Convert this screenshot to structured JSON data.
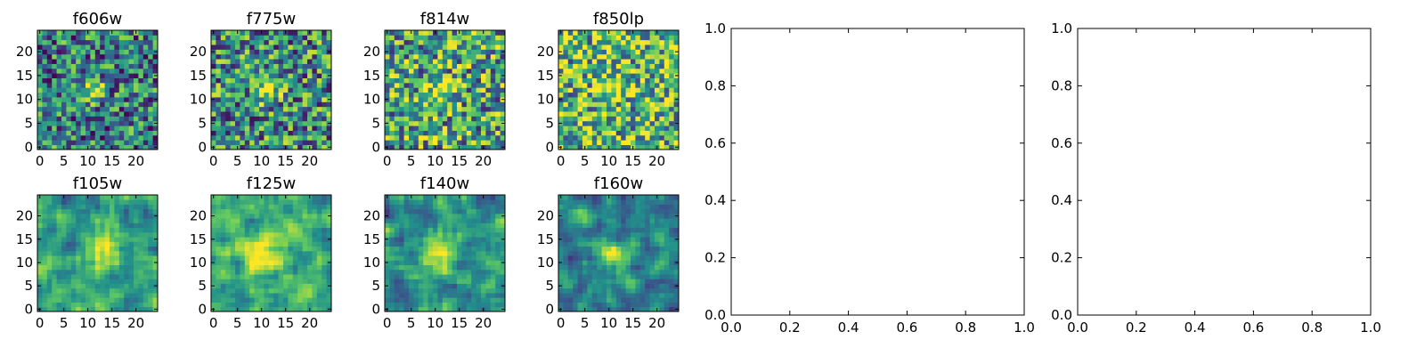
{
  "colormap": {
    "name": "viridis",
    "stops": [
      "#440154",
      "#3b528b",
      "#21918c",
      "#5ec962",
      "#fde725"
    ]
  },
  "chart_data": [
    {
      "type": "heatmap",
      "title": "f606w",
      "grid_shape": [
        25,
        25
      ],
      "xlim": [
        -0.5,
        24.5
      ],
      "ylim": [
        -0.5,
        24.5
      ],
      "xticks": [
        0,
        5,
        10,
        15,
        20
      ],
      "yticks": [
        0,
        5,
        10,
        15,
        20
      ],
      "background_level": 0.42,
      "noise": 0.42,
      "peak_center": [
        11,
        12
      ],
      "peak_level": 0.58,
      "peak_sigma": 1.8,
      "grid": false,
      "legend": "none"
    },
    {
      "type": "heatmap",
      "title": "f775w",
      "grid_shape": [
        25,
        25
      ],
      "xlim": [
        -0.5,
        24.5
      ],
      "ylim": [
        -0.5,
        24.5
      ],
      "xticks": [
        0,
        5,
        10,
        15,
        20
      ],
      "yticks": [
        0,
        5,
        10,
        15,
        20
      ],
      "background_level": 0.5,
      "noise": 0.45,
      "peak_center": [
        11,
        12
      ],
      "peak_level": 0.5,
      "peak_sigma": 1.8,
      "grid": false,
      "legend": "none"
    },
    {
      "type": "heatmap",
      "title": "f814w",
      "grid_shape": [
        25,
        25
      ],
      "xlim": [
        -0.5,
        24.5
      ],
      "ylim": [
        -0.5,
        24.5
      ],
      "xticks": [
        0,
        5,
        10,
        15,
        20
      ],
      "yticks": [
        0,
        5,
        10,
        15,
        20
      ],
      "background_level": 0.58,
      "noise": 0.45,
      "peak_center": [
        11,
        12
      ],
      "peak_level": 0.45,
      "peak_sigma": 1.8,
      "grid": false,
      "legend": "none"
    },
    {
      "type": "heatmap",
      "title": "f850lp",
      "grid_shape": [
        25,
        25
      ],
      "xlim": [
        -0.5,
        24.5
      ],
      "ylim": [
        -0.5,
        24.5
      ],
      "xticks": [
        0,
        5,
        10,
        15,
        20
      ],
      "yticks": [
        0,
        5,
        10,
        15,
        20
      ],
      "background_level": 0.65,
      "noise": 0.45,
      "peak_center": [
        11,
        13
      ],
      "peak_level": 0.3,
      "peak_sigma": 2.0,
      "grid": false,
      "legend": "none"
    },
    {
      "type": "heatmap",
      "title": "f105w",
      "grid_shape": [
        25,
        25
      ],
      "xlim": [
        -0.5,
        24.5
      ],
      "ylim": [
        -0.5,
        24.5
      ],
      "xticks": [
        0,
        5,
        10,
        15,
        20
      ],
      "yticks": [
        0,
        5,
        10,
        15,
        20
      ],
      "background_level": 0.55,
      "noise": 0.25,
      "smooth": true,
      "peak_center": [
        13,
        13
      ],
      "peak_level": 0.45,
      "peak_sigma": 2.4,
      "grid": false,
      "legend": "none"
    },
    {
      "type": "heatmap",
      "title": "f125w",
      "grid_shape": [
        25,
        25
      ],
      "xlim": [
        -0.5,
        24.5
      ],
      "ylim": [
        -0.5,
        24.5
      ],
      "xticks": [
        0,
        5,
        10,
        15,
        20
      ],
      "yticks": [
        0,
        5,
        10,
        15,
        20
      ],
      "background_level": 0.62,
      "noise": 0.25,
      "smooth": true,
      "peak_center": [
        11,
        12
      ],
      "peak_level": 0.4,
      "peak_sigma": 2.6,
      "grid": false,
      "legend": "none"
    },
    {
      "type": "heatmap",
      "title": "f140w",
      "grid_shape": [
        25,
        25
      ],
      "xlim": [
        -0.5,
        24.5
      ],
      "ylim": [
        -0.5,
        24.5
      ],
      "xticks": [
        0,
        5,
        10,
        15,
        20
      ],
      "yticks": [
        0,
        5,
        10,
        15,
        20
      ],
      "background_level": 0.52,
      "noise": 0.25,
      "smooth": true,
      "peak_center": [
        11,
        12
      ],
      "peak_level": 0.5,
      "peak_sigma": 2.4,
      "grid": false,
      "legend": "none"
    },
    {
      "type": "heatmap",
      "title": "f160w",
      "grid_shape": [
        25,
        25
      ],
      "xlim": [
        -0.5,
        24.5
      ],
      "ylim": [
        -0.5,
        24.5
      ],
      "xticks": [
        0,
        5,
        10,
        15,
        20
      ],
      "yticks": [
        0,
        5,
        10,
        15,
        20
      ],
      "background_level": 0.42,
      "noise": 0.25,
      "smooth": true,
      "peak_center": [
        11,
        12
      ],
      "peak_level": 0.6,
      "peak_sigma": 2.2,
      "grid": false,
      "legend": "none"
    },
    {
      "type": "line",
      "title": "",
      "series": [],
      "xlim": [
        0.0,
        1.0
      ],
      "ylim": [
        0.0,
        1.0
      ],
      "xticks": [
        "0.0",
        "0.2",
        "0.4",
        "0.6",
        "0.8",
        "1.0"
      ],
      "yticks": [
        "0.0",
        "0.2",
        "0.4",
        "0.6",
        "0.8",
        "1.0"
      ],
      "grid": false,
      "legend": "none"
    },
    {
      "type": "line",
      "title": "",
      "series": [],
      "xlim": [
        0.0,
        1.0
      ],
      "ylim": [
        0.0,
        1.0
      ],
      "xticks": [
        "0.0",
        "0.2",
        "0.4",
        "0.6",
        "0.8",
        "1.0"
      ],
      "yticks": [
        "0.0",
        "0.2",
        "0.4",
        "0.6",
        "0.8",
        "1.0"
      ],
      "grid": false,
      "legend": "none"
    }
  ]
}
